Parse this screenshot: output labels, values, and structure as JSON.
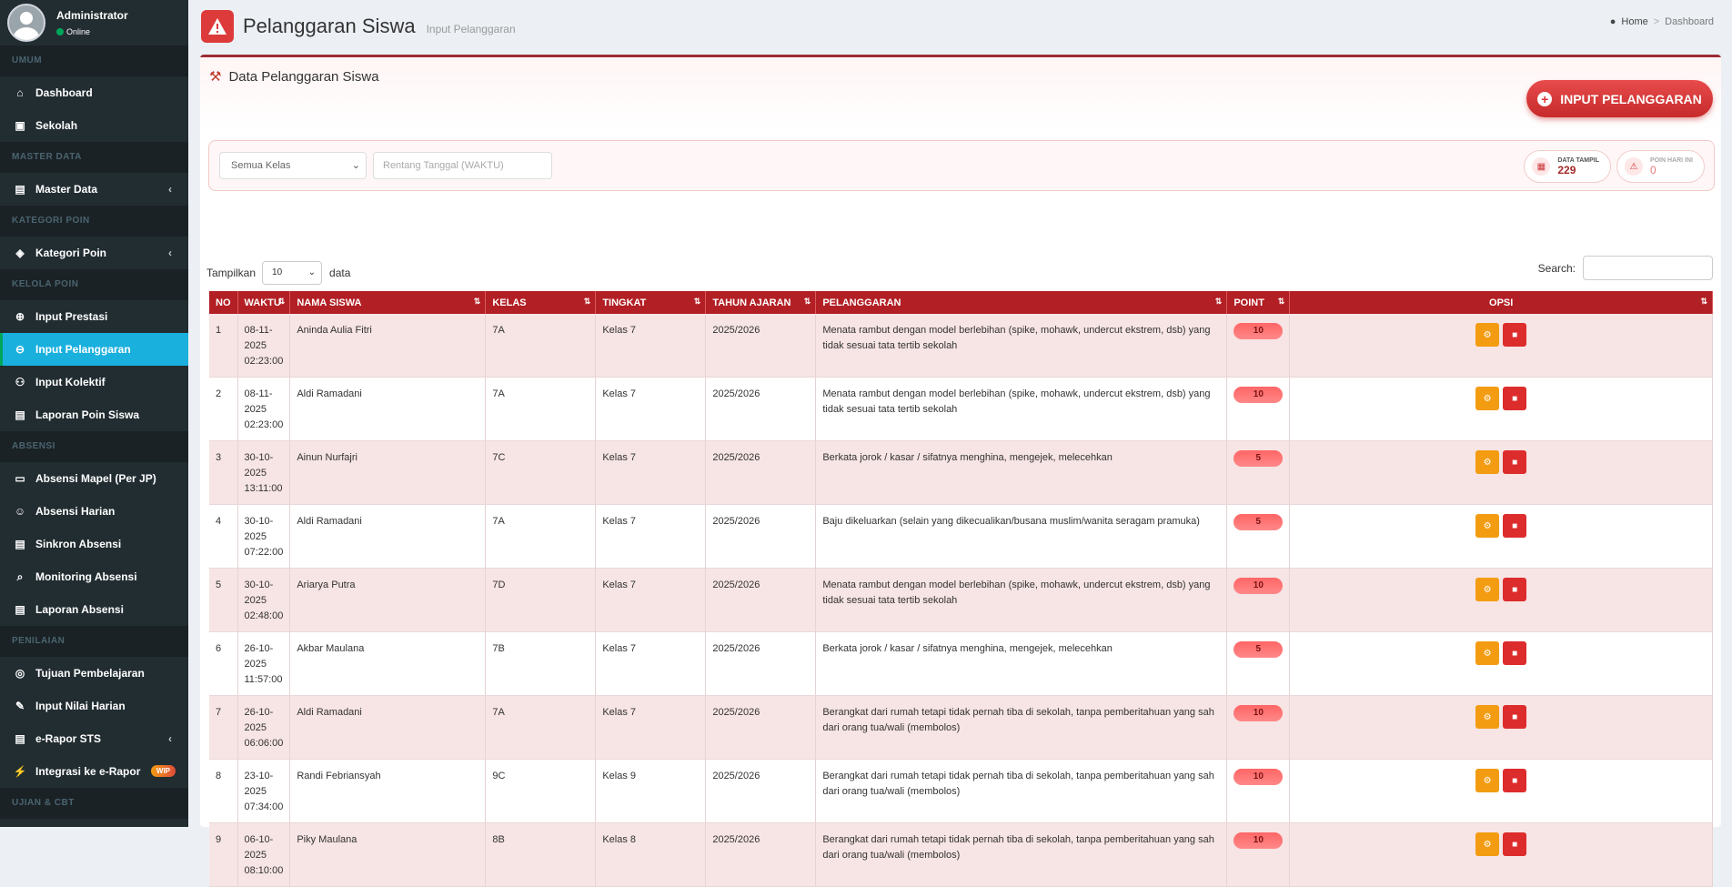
{
  "user": {
    "name": "Administrator",
    "status": "Online"
  },
  "sidebar": {
    "sections": [
      {
        "header": "UMUM",
        "items": [
          {
            "label": "Dashboard",
            "icon": "home-icon"
          },
          {
            "label": "Sekolah",
            "icon": "building-icon"
          }
        ]
      },
      {
        "header": "MASTER DATA",
        "items": [
          {
            "label": "Master Data",
            "icon": "database-icon",
            "chevron": true
          }
        ]
      },
      {
        "header": "KATEGORI POIN",
        "items": [
          {
            "label": "Kategori Poin",
            "icon": "tag-icon",
            "chevron": true
          }
        ]
      },
      {
        "header": "KELOLA POIN",
        "items": [
          {
            "label": "Input Prestasi",
            "icon": "plus-circle-icon"
          },
          {
            "label": "Input Pelanggaran",
            "icon": "minus-circle-icon",
            "active": true
          },
          {
            "label": "Input Kolektif",
            "icon": "users-icon"
          },
          {
            "label": "Laporan Poin Siswa",
            "icon": "clipboard-icon"
          }
        ]
      },
      {
        "header": "ABSENSI",
        "items": [
          {
            "label": "Absensi Mapel (Per JP)",
            "icon": "chalkboard-icon"
          },
          {
            "label": "Absensi Harian",
            "icon": "user-check-icon"
          },
          {
            "label": "Sinkron Absensi",
            "icon": "database-icon"
          },
          {
            "label": "Monitoring Absensi",
            "icon": "search-icon"
          },
          {
            "label": "Laporan Absensi",
            "icon": "clipboard-icon"
          }
        ]
      },
      {
        "header": "PENILAIAN",
        "items": [
          {
            "label": "Tujuan Pembelajaran",
            "icon": "target-icon"
          },
          {
            "label": "Input Nilai Harian",
            "icon": "edit-icon"
          },
          {
            "label": "e-Rapor STS",
            "icon": "file-icon",
            "chevron": true
          },
          {
            "label": "Integrasi ke e-Rapor",
            "icon": "plug-icon",
            "badge": "WIP"
          }
        ]
      },
      {
        "header": "UJIAN & CBT",
        "items": []
      }
    ]
  },
  "page": {
    "title": "Pelanggaran Siswa",
    "subtitle": "Input Pelanggaran"
  },
  "breadcrumb": {
    "home": "Home",
    "current": "Dashboard"
  },
  "card": {
    "title": "Data Pelanggaran Siswa",
    "button": "INPUT PELANGGARAN"
  },
  "filter": {
    "kelas": "Semua Kelas",
    "date_placeholder": "Rentang Tanggal (WAKTU)"
  },
  "stats": {
    "data_tampil_label": "DATA TAMPIL",
    "data_tampil": "229",
    "poin_label": "POIN HARI INI",
    "poin": "0"
  },
  "table_controls": {
    "show_prefix": "Tampilkan",
    "show_value": "10",
    "show_suffix": "data",
    "search_label": "Search:"
  },
  "table": {
    "headers": [
      "NO",
      "WAKTU",
      "NAMA SISWA",
      "KELAS",
      "TINGKAT",
      "TAHUN AJARAN",
      "PELANGGARAN",
      "POINT",
      "OPSI"
    ],
    "rows": [
      {
        "no": "1",
        "waktu": [
          "08-11-",
          "2025",
          "02:23:00"
        ],
        "nama": "Aninda Aulia Fitri",
        "kelas": "7A",
        "tingkat": "Kelas 7",
        "tahun": "2025/2026",
        "pelanggaran": "Menata rambut dengan model berlebihan (spike, mohawk, undercut ekstrem, dsb) yang tidak sesuai tata tertib sekolah",
        "point": "10"
      },
      {
        "no": "2",
        "waktu": [
          "08-11-",
          "2025",
          "02:23:00"
        ],
        "nama": "Aldi Ramadani",
        "kelas": "7A",
        "tingkat": "Kelas 7",
        "tahun": "2025/2026",
        "pelanggaran": "Menata rambut dengan model berlebihan (spike, mohawk, undercut ekstrem, dsb) yang tidak sesuai tata tertib sekolah",
        "point": "10"
      },
      {
        "no": "3",
        "waktu": [
          "30-10-",
          "2025",
          "13:11:00"
        ],
        "nama": "Ainun Nurfajri",
        "kelas": "7C",
        "tingkat": "Kelas 7",
        "tahun": "2025/2026",
        "pelanggaran": "Berkata jorok / kasar / sifatnya menghina, mengejek, melecehkan",
        "point": "5"
      },
      {
        "no": "4",
        "waktu": [
          "30-10-",
          "2025",
          "07:22:00"
        ],
        "nama": "Aldi Ramadani",
        "kelas": "7A",
        "tingkat": "Kelas 7",
        "tahun": "2025/2026",
        "pelanggaran": "Baju dikeluarkan (selain yang dikecualikan/busana muslim/wanita seragam pramuka)",
        "point": "5"
      },
      {
        "no": "5",
        "waktu": [
          "30-10-",
          "2025",
          "02:48:00"
        ],
        "nama": "Ariarya Putra",
        "kelas": "7D",
        "tingkat": "Kelas 7",
        "tahun": "2025/2026",
        "pelanggaran": "Menata rambut dengan model berlebihan (spike, mohawk, undercut ekstrem, dsb) yang tidak sesuai tata tertib sekolah",
        "point": "10"
      },
      {
        "no": "6",
        "waktu": [
          "26-10-",
          "2025",
          "11:57:00"
        ],
        "nama": "Akbar Maulana",
        "kelas": "7B",
        "tingkat": "Kelas 7",
        "tahun": "2025/2026",
        "pelanggaran": "Berkata jorok / kasar / sifatnya menghina, mengejek, melecehkan",
        "point": "5"
      },
      {
        "no": "7",
        "waktu": [
          "26-10-",
          "2025",
          "06:06:00"
        ],
        "nama": "Aldi Ramadani",
        "kelas": "7A",
        "tingkat": "Kelas 7",
        "tahun": "2025/2026",
        "pelanggaran": "Berangkat dari rumah tetapi tidak pernah tiba di sekolah, tanpa pemberitahuan yang sah dari orang tua/wali (membolos)",
        "point": "10"
      },
      {
        "no": "8",
        "waktu": [
          "23-10-",
          "2025",
          "07:34:00"
        ],
        "nama": "Randi Febriansyah",
        "kelas": "9C",
        "tingkat": "Kelas 9",
        "tahun": "2025/2026",
        "pelanggaran": "Berangkat dari rumah tetapi tidak pernah tiba di sekolah, tanpa pemberitahuan yang sah dari orang tua/wali (membolos)",
        "point": "10"
      },
      {
        "no": "9",
        "waktu": [
          "06-10-",
          "2025",
          "08:10:00"
        ],
        "nama": "Piky Maulana",
        "kelas": "8B",
        "tingkat": "Kelas 8",
        "tahun": "2025/2026",
        "pelanggaran": "Berangkat dari rumah tetapi tidak pernah tiba di sekolah, tanpa pemberitahuan yang sah dari orang tua/wali (membolos)",
        "point": "10"
      }
    ]
  },
  "colors": {
    "accent": "#b21f24",
    "sidebar": "#222d32",
    "active": "#1ab0de"
  }
}
